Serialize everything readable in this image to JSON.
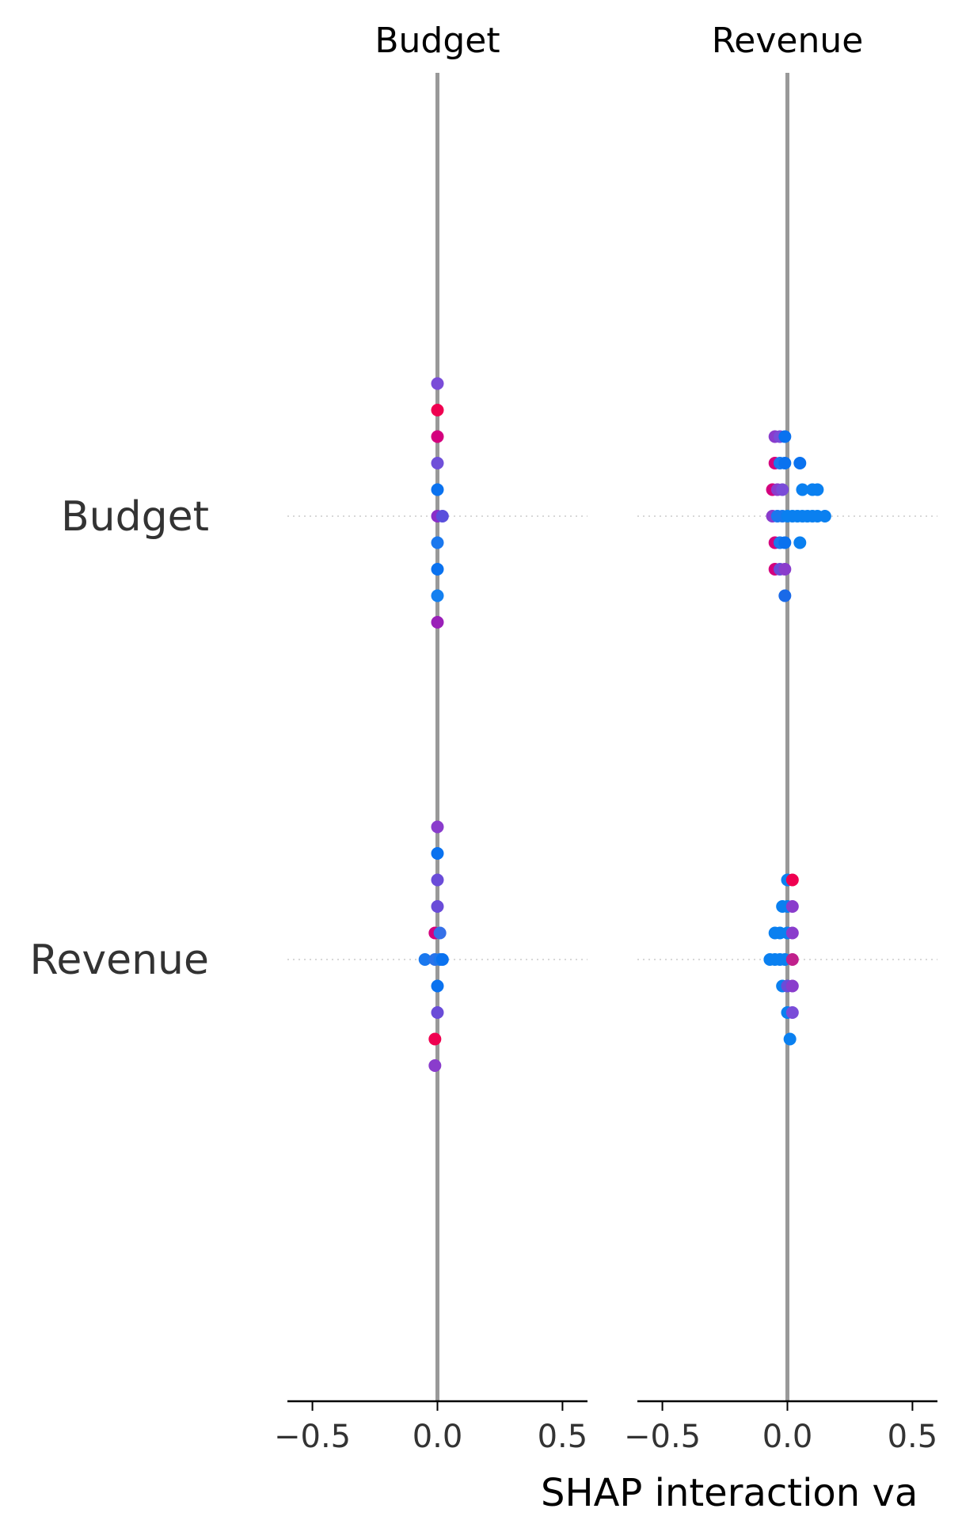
{
  "chart_data": {
    "type": "scatter",
    "xlabel": "SHAP interaction va",
    "xlim": [
      -0.6,
      0.6
    ],
    "xticks": [
      -0.5,
      0.0,
      0.5
    ],
    "xtick_labels": [
      "−0.5",
      "0.0",
      "0.5"
    ],
    "panels": [
      {
        "title": "Budget",
        "rows": [
          {
            "label": "Budget",
            "points": [
              {
                "x": 0.0,
                "offset": -5,
                "color": "#7a4cd8"
              },
              {
                "x": 0.0,
                "offset": -4,
                "color": "#ef0050"
              },
              {
                "x": 0.0,
                "offset": -3,
                "color": "#d4007e"
              },
              {
                "x": 0.0,
                "offset": -2,
                "color": "#7050d9"
              },
              {
                "x": 0.0,
                "offset": -1,
                "color": "#0a72ef"
              },
              {
                "x": 0.0,
                "offset": 0,
                "color": "#8a2fc8"
              },
              {
                "x": 0.02,
                "offset": 0,
                "color": "#5a4fdc"
              },
              {
                "x": 0.0,
                "offset": 1,
                "color": "#1a78ee"
              },
              {
                "x": 0.0,
                "offset": 2,
                "color": "#0a72ef"
              },
              {
                "x": 0.0,
                "offset": 3,
                "color": "#1480f0"
              },
              {
                "x": 0.0,
                "offset": 4,
                "color": "#9a20b8"
              }
            ]
          },
          {
            "label": "Revenue",
            "points": [
              {
                "x": 0.0,
                "offset": -5,
                "color": "#8a3ccc"
              },
              {
                "x": 0.0,
                "offset": -4,
                "color": "#0a72ef"
              },
              {
                "x": 0.0,
                "offset": -3,
                "color": "#6a4cd8"
              },
              {
                "x": 0.0,
                "offset": -2,
                "color": "#6a4cd8"
              },
              {
                "x": -0.01,
                "offset": -1,
                "color": "#d4007e"
              },
              {
                "x": 0.01,
                "offset": -1,
                "color": "#3570e8"
              },
              {
                "x": -0.05,
                "offset": 0,
                "color": "#1a78ee"
              },
              {
                "x": -0.01,
                "offset": 0,
                "color": "#2a74ea"
              },
              {
                "x": 0.01,
                "offset": 0,
                "color": "#1a78ee"
              },
              {
                "x": 0.02,
                "offset": 0,
                "color": "#0a72ef"
              },
              {
                "x": 0.0,
                "offset": 1,
                "color": "#0a72ef"
              },
              {
                "x": 0.0,
                "offset": 2,
                "color": "#6a4cd8"
              },
              {
                "x": -0.01,
                "offset": 3,
                "color": "#ef0050"
              },
              {
                "x": -0.01,
                "offset": 4,
                "color": "#8a3ccc"
              }
            ]
          }
        ]
      },
      {
        "title": "Revenue",
        "rows": [
          {
            "label": "Budget",
            "points": [
              {
                "x": -0.05,
                "offset": -3,
                "color": "#8a3ccc"
              },
              {
                "x": -0.03,
                "offset": -3,
                "color": "#7a4cd8"
              },
              {
                "x": -0.01,
                "offset": -3,
                "color": "#0a72ef"
              },
              {
                "x": -0.05,
                "offset": -2,
                "color": "#d4007e"
              },
              {
                "x": -0.03,
                "offset": -2,
                "color": "#1a78ee"
              },
              {
                "x": -0.01,
                "offset": -2,
                "color": "#0a72ef"
              },
              {
                "x": 0.05,
                "offset": -2,
                "color": "#0a72ef"
              },
              {
                "x": -0.06,
                "offset": -1,
                "color": "#d4007e"
              },
              {
                "x": -0.04,
                "offset": -1,
                "color": "#8a3ccc"
              },
              {
                "x": -0.02,
                "offset": -1,
                "color": "#7a4cd8"
              },
              {
                "x": 0.06,
                "offset": -1,
                "color": "#0a80f0"
              },
              {
                "x": 0.1,
                "offset": -1,
                "color": "#0a80f0"
              },
              {
                "x": 0.12,
                "offset": -1,
                "color": "#0a80f0"
              },
              {
                "x": -0.06,
                "offset": 0,
                "color": "#8a3ccc"
              },
              {
                "x": -0.04,
                "offset": 0,
                "color": "#1a78ee"
              },
              {
                "x": -0.02,
                "offset": 0,
                "color": "#1a78ee"
              },
              {
                "x": 0.0,
                "offset": 0,
                "color": "#0a80f0"
              },
              {
                "x": 0.02,
                "offset": 0,
                "color": "#0a80f0"
              },
              {
                "x": 0.04,
                "offset": 0,
                "color": "#0a80f0"
              },
              {
                "x": 0.06,
                "offset": 0,
                "color": "#0a80f0"
              },
              {
                "x": 0.08,
                "offset": 0,
                "color": "#0a80f0"
              },
              {
                "x": 0.1,
                "offset": 0,
                "color": "#0a80f0"
              },
              {
                "x": 0.12,
                "offset": 0,
                "color": "#0a80f0"
              },
              {
                "x": 0.15,
                "offset": 0,
                "color": "#0a80f0"
              },
              {
                "x": -0.05,
                "offset": 1,
                "color": "#d4007e"
              },
              {
                "x": -0.03,
                "offset": 1,
                "color": "#1a78ee"
              },
              {
                "x": -0.01,
                "offset": 1,
                "color": "#0a72ef"
              },
              {
                "x": 0.05,
                "offset": 1,
                "color": "#0a80f0"
              },
              {
                "x": -0.05,
                "offset": 2,
                "color": "#d4007e"
              },
              {
                "x": -0.03,
                "offset": 2,
                "color": "#6a4cd8"
              },
              {
                "x": -0.01,
                "offset": 2,
                "color": "#8a3ccc"
              },
              {
                "x": -0.01,
                "offset": 3,
                "color": "#1a6ae8"
              }
            ]
          },
          {
            "label": "Revenue",
            "points": [
              {
                "x": 0.0,
                "offset": -3,
                "color": "#0a80f0"
              },
              {
                "x": 0.02,
                "offset": -3,
                "color": "#ef0050"
              },
              {
                "x": -0.02,
                "offset": -2,
                "color": "#0a80f0"
              },
              {
                "x": 0.0,
                "offset": -2,
                "color": "#0a80f0"
              },
              {
                "x": 0.02,
                "offset": -2,
                "color": "#8a3ccc"
              },
              {
                "x": -0.05,
                "offset": -1,
                "color": "#0a80f0"
              },
              {
                "x": -0.03,
                "offset": -1,
                "color": "#0a80f0"
              },
              {
                "x": 0.0,
                "offset": -1,
                "color": "#0a80f0"
              },
              {
                "x": 0.02,
                "offset": -1,
                "color": "#8a3ccc"
              },
              {
                "x": -0.07,
                "offset": 0,
                "color": "#0a80f0"
              },
              {
                "x": -0.05,
                "offset": 0,
                "color": "#0a80f0"
              },
              {
                "x": -0.03,
                "offset": 0,
                "color": "#0a80f0"
              },
              {
                "x": -0.01,
                "offset": 0,
                "color": "#0a80f0"
              },
              {
                "x": 0.02,
                "offset": 0,
                "color": "#c0208c"
              },
              {
                "x": -0.02,
                "offset": 1,
                "color": "#0a80f0"
              },
              {
                "x": 0.0,
                "offset": 1,
                "color": "#6a4cd8"
              },
              {
                "x": 0.02,
                "offset": 1,
                "color": "#8a3ccc"
              },
              {
                "x": 0.0,
                "offset": 2,
                "color": "#0a80f0"
              },
              {
                "x": 0.02,
                "offset": 2,
                "color": "#7a4cd8"
              },
              {
                "x": 0.01,
                "offset": 3,
                "color": "#0a80f0"
              }
            ]
          }
        ]
      }
    ]
  },
  "colors": {
    "zero_line": "#999999",
    "row_guide": "#cccccc",
    "axis": "#000000",
    "text": "#333333"
  }
}
